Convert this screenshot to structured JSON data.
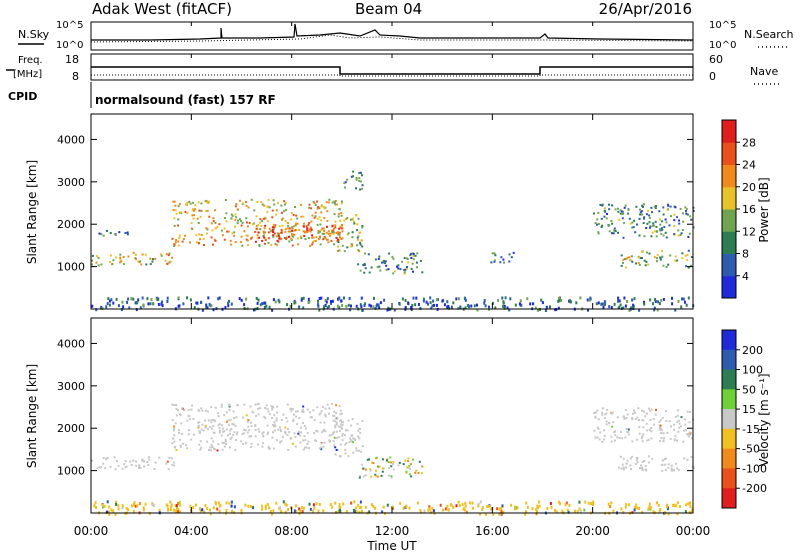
{
  "header": {
    "station": "Adak West (fitACF)",
    "beam": "Beam 04",
    "date": "26/Apr/2016"
  },
  "summary_panels": {
    "nsky_label": "N.Sky",
    "nsearch_label": "N.Search",
    "freq_label_line1": "Freq.",
    "freq_label_line2": "[MHz]",
    "nave_label": "Nave",
    "cpid_label": "CPID",
    "cpid_value": "normalsound (fast) 157 RF",
    "noise_left_ticks": [
      "10^5",
      "10^0"
    ],
    "noise_right_ticks": [
      "10^5",
      "10^0"
    ],
    "freq_ticks": [
      "18",
      "8"
    ],
    "nave_ticks": [
      "60",
      "0"
    ]
  },
  "chart_data": [
    {
      "type": "heatmap",
      "panel": "power",
      "xlabel": "",
      "ylabel": "Slant Range [km]",
      "ylim": [
        0,
        4600
      ],
      "xlim": [
        0,
        24
      ],
      "y_ticks": [
        "1000",
        "2000",
        "3000",
        "4000"
      ],
      "colorbar_label": "Power [dB]",
      "colorbar_ticks": [
        "4",
        "8",
        "12",
        "16",
        "20",
        "24",
        "28"
      ],
      "colorbar_colors": [
        "#1f2bd8",
        "#2d5bb0",
        "#2e7d52",
        "#6fa552",
        "#e8c229",
        "#f08a1c",
        "#e8511c",
        "#e01e1e"
      ],
      "echo_regions": [
        {
          "t0": 0.0,
          "t1": 3.4,
          "r0": 1050,
          "r1": 1350,
          "level": 0.55
        },
        {
          "t0": 0.0,
          "t1": 1.5,
          "r0": 1750,
          "r1": 1900,
          "level": 0.25
        },
        {
          "t0": 3.2,
          "t1": 10.0,
          "r0": 1500,
          "r1": 2600,
          "level": 0.6
        },
        {
          "t0": 6.5,
          "t1": 10.0,
          "r0": 1600,
          "r1": 2000,
          "level": 0.85
        },
        {
          "t0": 9.6,
          "t1": 10.8,
          "r0": 1350,
          "r1": 2300,
          "level": 0.5
        },
        {
          "t0": 10.0,
          "t1": 10.8,
          "r0": 2800,
          "r1": 3300,
          "level": 0.3
        },
        {
          "t0": 10.6,
          "t1": 13.2,
          "r0": 850,
          "r1": 1350,
          "level": 0.3
        },
        {
          "t0": 15.9,
          "t1": 16.9,
          "r0": 1100,
          "r1": 1400,
          "level": 0.3
        },
        {
          "t0": 20.0,
          "t1": 24.0,
          "r0": 1700,
          "r1": 2500,
          "level": 0.3
        },
        {
          "t0": 21.0,
          "t1": 24.0,
          "r0": 1000,
          "r1": 1400,
          "level": 0.45
        },
        {
          "t0": 0.0,
          "t1": 24.0,
          "r0": 0,
          "r1": 300,
          "level": 0.2
        }
      ]
    },
    {
      "type": "heatmap",
      "panel": "velocity",
      "xlabel": "Time UT",
      "ylabel": "Slant Range [km]",
      "ylim": [
        0,
        4600
      ],
      "xlim": [
        0,
        24
      ],
      "x_ticks": [
        "00:00",
        "04:00",
        "08:00",
        "12:00",
        "16:00",
        "20:00",
        "00:00"
      ],
      "y_ticks": [
        "1000",
        "2000",
        "3000",
        "4000"
      ],
      "colorbar_label": "Velocity [m s⁻¹]",
      "colorbar_ticks": [
        "200",
        "100",
        "50",
        "15",
        "-15",
        "-50",
        "-100",
        "-200"
      ],
      "colorbar_colors": [
        "#1f2bd8",
        "#2d5bb0",
        "#2e7d52",
        "#6fd13a",
        "#c8c8c8",
        "#f0c020",
        "#f08a1c",
        "#e8511c",
        "#e01e1e"
      ],
      "echo_regions": [
        {
          "t0": 0.0,
          "t1": 3.4,
          "r0": 1050,
          "r1": 1350,
          "kind": "gray"
        },
        {
          "t0": 3.2,
          "t1": 10.0,
          "r0": 1500,
          "r1": 2600,
          "kind": "gray"
        },
        {
          "t0": 9.6,
          "t1": 10.8,
          "r0": 1350,
          "r1": 2300,
          "kind": "gray"
        },
        {
          "t0": 10.6,
          "t1": 13.2,
          "r0": 850,
          "r1": 1350,
          "kind": "mixed"
        },
        {
          "t0": 20.0,
          "t1": 24.0,
          "r0": 1700,
          "r1": 2500,
          "kind": "gray"
        },
        {
          "t0": 21.0,
          "t1": 24.0,
          "r0": 1000,
          "r1": 1400,
          "kind": "gray"
        },
        {
          "t0": 0.0,
          "t1": 24.0,
          "r0": 0,
          "r1": 300,
          "kind": "ground"
        }
      ]
    }
  ]
}
